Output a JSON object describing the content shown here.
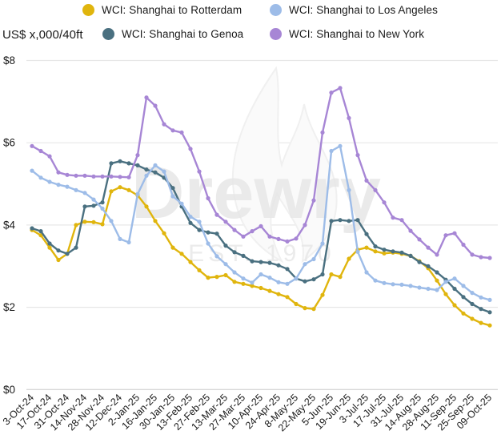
{
  "unit_label": "US$ x,000/40ft",
  "watermark": {
    "text": "Drewry",
    "subtext": "EST. 1970"
  },
  "axis": {
    "y_ticks": [
      {
        "label": "$8",
        "value": 8
      },
      {
        "label": "$6",
        "value": 6
      },
      {
        "label": "$4",
        "value": 4
      },
      {
        "label": "$2",
        "value": 2
      },
      {
        "label": "$0",
        "value": 0
      }
    ],
    "y_gridlines": [
      8,
      6,
      4,
      2,
      0
    ]
  },
  "colors": {
    "rotterdam": "#e0b50d",
    "genoa": "#4a7080",
    "los_angeles": "#9dbce8",
    "new_york": "#a786d5",
    "grid": "#e7e7e7",
    "axis_line": "#d7d7d7",
    "text": "#1a1a1a",
    "watermark": "#e6e6e6"
  },
  "chart_data": {
    "type": "line",
    "title": "",
    "ylabel": "US$ x,000/40ft",
    "ylim": [
      0,
      8
    ],
    "grid": true,
    "legend_position": "top",
    "x_tick_step": 2,
    "x": [
      "3-Oct-24",
      "10-Oct-24",
      "17-Oct-24",
      "24-Oct-24",
      "31-Oct-24",
      "7-Nov-24",
      "14-Nov-24",
      "21-Nov-24",
      "28-Nov-24",
      "5-Dec-24",
      "12-Dec-24",
      "19-Dec-24",
      "2-Jan-25",
      "9-Jan-25",
      "16-Jan-25",
      "23-Jan-25",
      "30-Jan-25",
      "6-Feb-25",
      "13-Feb-25",
      "20-Feb-25",
      "27-Feb-25",
      "6-Mar-25",
      "13-Mar-25",
      "20-Mar-25",
      "27-Mar-25",
      "3-Apr-25",
      "10-Apr-25",
      "17-Apr-25",
      "24-Apr-25",
      "1-May-25",
      "8-May-25",
      "15-May-25",
      "22-May-25",
      "29-May-25",
      "5-Jun-25",
      "12-Jun-25",
      "19-Jun-25",
      "26-Jun-25",
      "3-Jul-25",
      "10-Jul-25",
      "17-Jul-25",
      "24-Jul-25",
      "31-Jul-25",
      "7-Aug-25",
      "14-Aug-25",
      "21-Aug-25",
      "28-Aug-25",
      "4-Sep-25",
      "11-Sep-25",
      "18-Sep-25",
      "25-Sep-25",
      "2-Oct-25",
      "09-Oct-25"
    ],
    "x_axis_labels_shown": [
      "3-Oct-24",
      "17-Oct-24",
      "31-Oct-24",
      "14-Nov-24",
      "28-Nov-24",
      "12-Dec-24",
      "2-Jan-25",
      "16-Jan-25",
      "30-Jan-25",
      "13-Feb-25",
      "27-Feb-25",
      "13-Mar-25",
      "27-Mar-25",
      "10-Apr-25",
      "24-Apr-25",
      "8-May-25",
      "22-May-25",
      "5-Jun-25",
      "19-Jun-25",
      "3-Jul-25",
      "17-Jul-25",
      "31-Jul-25",
      "14-Aug-25",
      "28-Aug-25",
      "11-Sep-25",
      "25-Sep-25",
      "09-Oct-25"
    ],
    "series": [
      {
        "name": "WCI: Shanghai to Rotterdam",
        "color_key": "rotterdam",
        "values": [
          3.88,
          3.75,
          3.45,
          3.15,
          3.3,
          4.0,
          4.08,
          4.07,
          4.02,
          4.82,
          4.92,
          4.85,
          4.72,
          4.45,
          4.1,
          3.8,
          3.45,
          3.3,
          3.1,
          2.9,
          2.72,
          2.74,
          2.78,
          2.62,
          2.57,
          2.52,
          2.47,
          2.4,
          2.32,
          2.25,
          2.08,
          1.98,
          1.96,
          2.3,
          2.8,
          2.74,
          3.18,
          3.4,
          3.45,
          3.36,
          3.31,
          3.33,
          3.3,
          3.25,
          3.12,
          2.95,
          2.65,
          2.32,
          2.05,
          1.85,
          1.72,
          1.62,
          1.56
        ]
      },
      {
        "name": "WCI: Shanghai to Genoa",
        "color_key": "genoa",
        "values": [
          3.92,
          3.85,
          3.55,
          3.38,
          3.3,
          3.45,
          4.45,
          4.47,
          4.55,
          5.5,
          5.55,
          5.5,
          5.45,
          5.35,
          5.28,
          5.15,
          4.9,
          4.45,
          4.05,
          3.88,
          3.82,
          3.79,
          3.5,
          3.34,
          3.25,
          3.12,
          3.1,
          3.08,
          3.02,
          2.93,
          2.7,
          2.63,
          2.68,
          2.8,
          4.1,
          4.12,
          4.1,
          4.12,
          3.78,
          3.48,
          3.4,
          3.36,
          3.33,
          3.25,
          3.1,
          3.0,
          2.85,
          2.67,
          2.45,
          2.25,
          2.08,
          1.96,
          1.88
        ]
      },
      {
        "name": "WCI: Shanghai to Los Angeles",
        "color_key": "los_angeles",
        "values": [
          5.32,
          5.15,
          5.05,
          4.98,
          4.93,
          4.85,
          4.78,
          4.62,
          4.4,
          4.1,
          3.66,
          3.58,
          4.75,
          5.2,
          5.45,
          5.3,
          4.7,
          4.52,
          4.2,
          4.08,
          3.55,
          3.24,
          3.05,
          2.85,
          2.7,
          2.6,
          2.8,
          2.72,
          2.61,
          2.57,
          2.7,
          3.05,
          3.17,
          3.55,
          5.8,
          5.92,
          4.85,
          3.35,
          2.85,
          2.65,
          2.59,
          2.56,
          2.55,
          2.52,
          2.48,
          2.45,
          2.42,
          2.62,
          2.7,
          2.52,
          2.35,
          2.24,
          2.18
        ]
      },
      {
        "name": "WCI: Shanghai to New York",
        "color_key": "new_york",
        "values": [
          5.92,
          5.8,
          5.67,
          5.28,
          5.22,
          5.2,
          5.2,
          5.18,
          5.18,
          5.18,
          5.17,
          5.16,
          5.7,
          7.1,
          6.9,
          6.45,
          6.3,
          6.25,
          5.85,
          5.3,
          4.65,
          4.25,
          4.08,
          3.88,
          3.72,
          3.85,
          3.97,
          3.72,
          3.66,
          3.6,
          3.67,
          4.0,
          4.6,
          6.25,
          7.22,
          7.33,
          6.6,
          5.7,
          5.08,
          4.85,
          4.55,
          4.18,
          4.12,
          3.86,
          3.65,
          3.45,
          3.28,
          3.75,
          3.8,
          3.52,
          3.28,
          3.22,
          3.2
        ]
      }
    ]
  }
}
